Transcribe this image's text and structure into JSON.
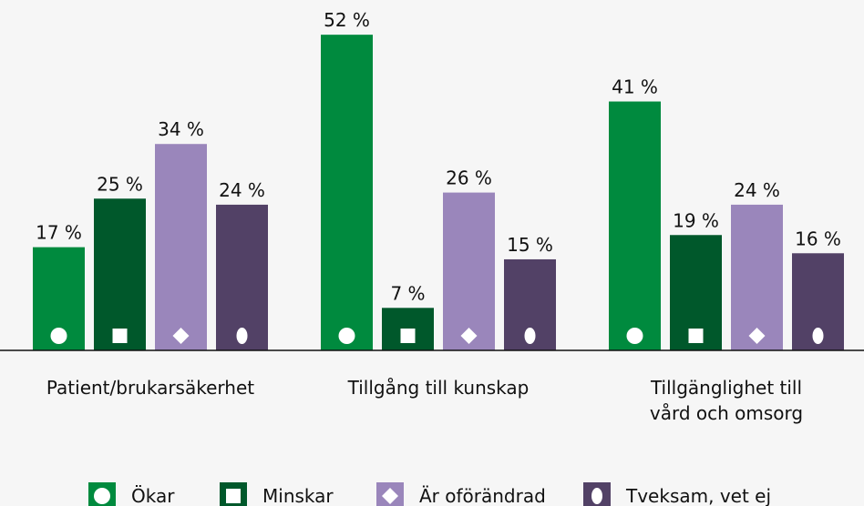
{
  "chart_data": {
    "type": "bar",
    "categories": [
      "Patient/brukarsäkerhet",
      "Tillgång till kunskap",
      "Tillgänglighet till vård och omsorg"
    ],
    "series": [
      {
        "name": "Ökar",
        "color": "#008a3e",
        "values": [
          17,
          52,
          41
        ],
        "value_labels": [
          "17 %",
          "52 %",
          "41 %"
        ]
      },
      {
        "name": "Minskar",
        "color": "#00582b",
        "values": [
          25,
          7,
          19
        ],
        "value_labels": [
          "25 %",
          "7 %",
          "19 %"
        ]
      },
      {
        "name": "Är oförändrad",
        "color": "#9a86bb",
        "values": [
          34,
          26,
          24
        ],
        "value_labels": [
          "34 %",
          "26 %",
          "24 %"
        ]
      },
      {
        "name": "Tveksam, vet ej",
        "color": "#524166",
        "values": [
          24,
          15,
          16
        ],
        "value_labels": [
          "24 %",
          "15 %",
          "16 %"
        ]
      }
    ]
  }
}
